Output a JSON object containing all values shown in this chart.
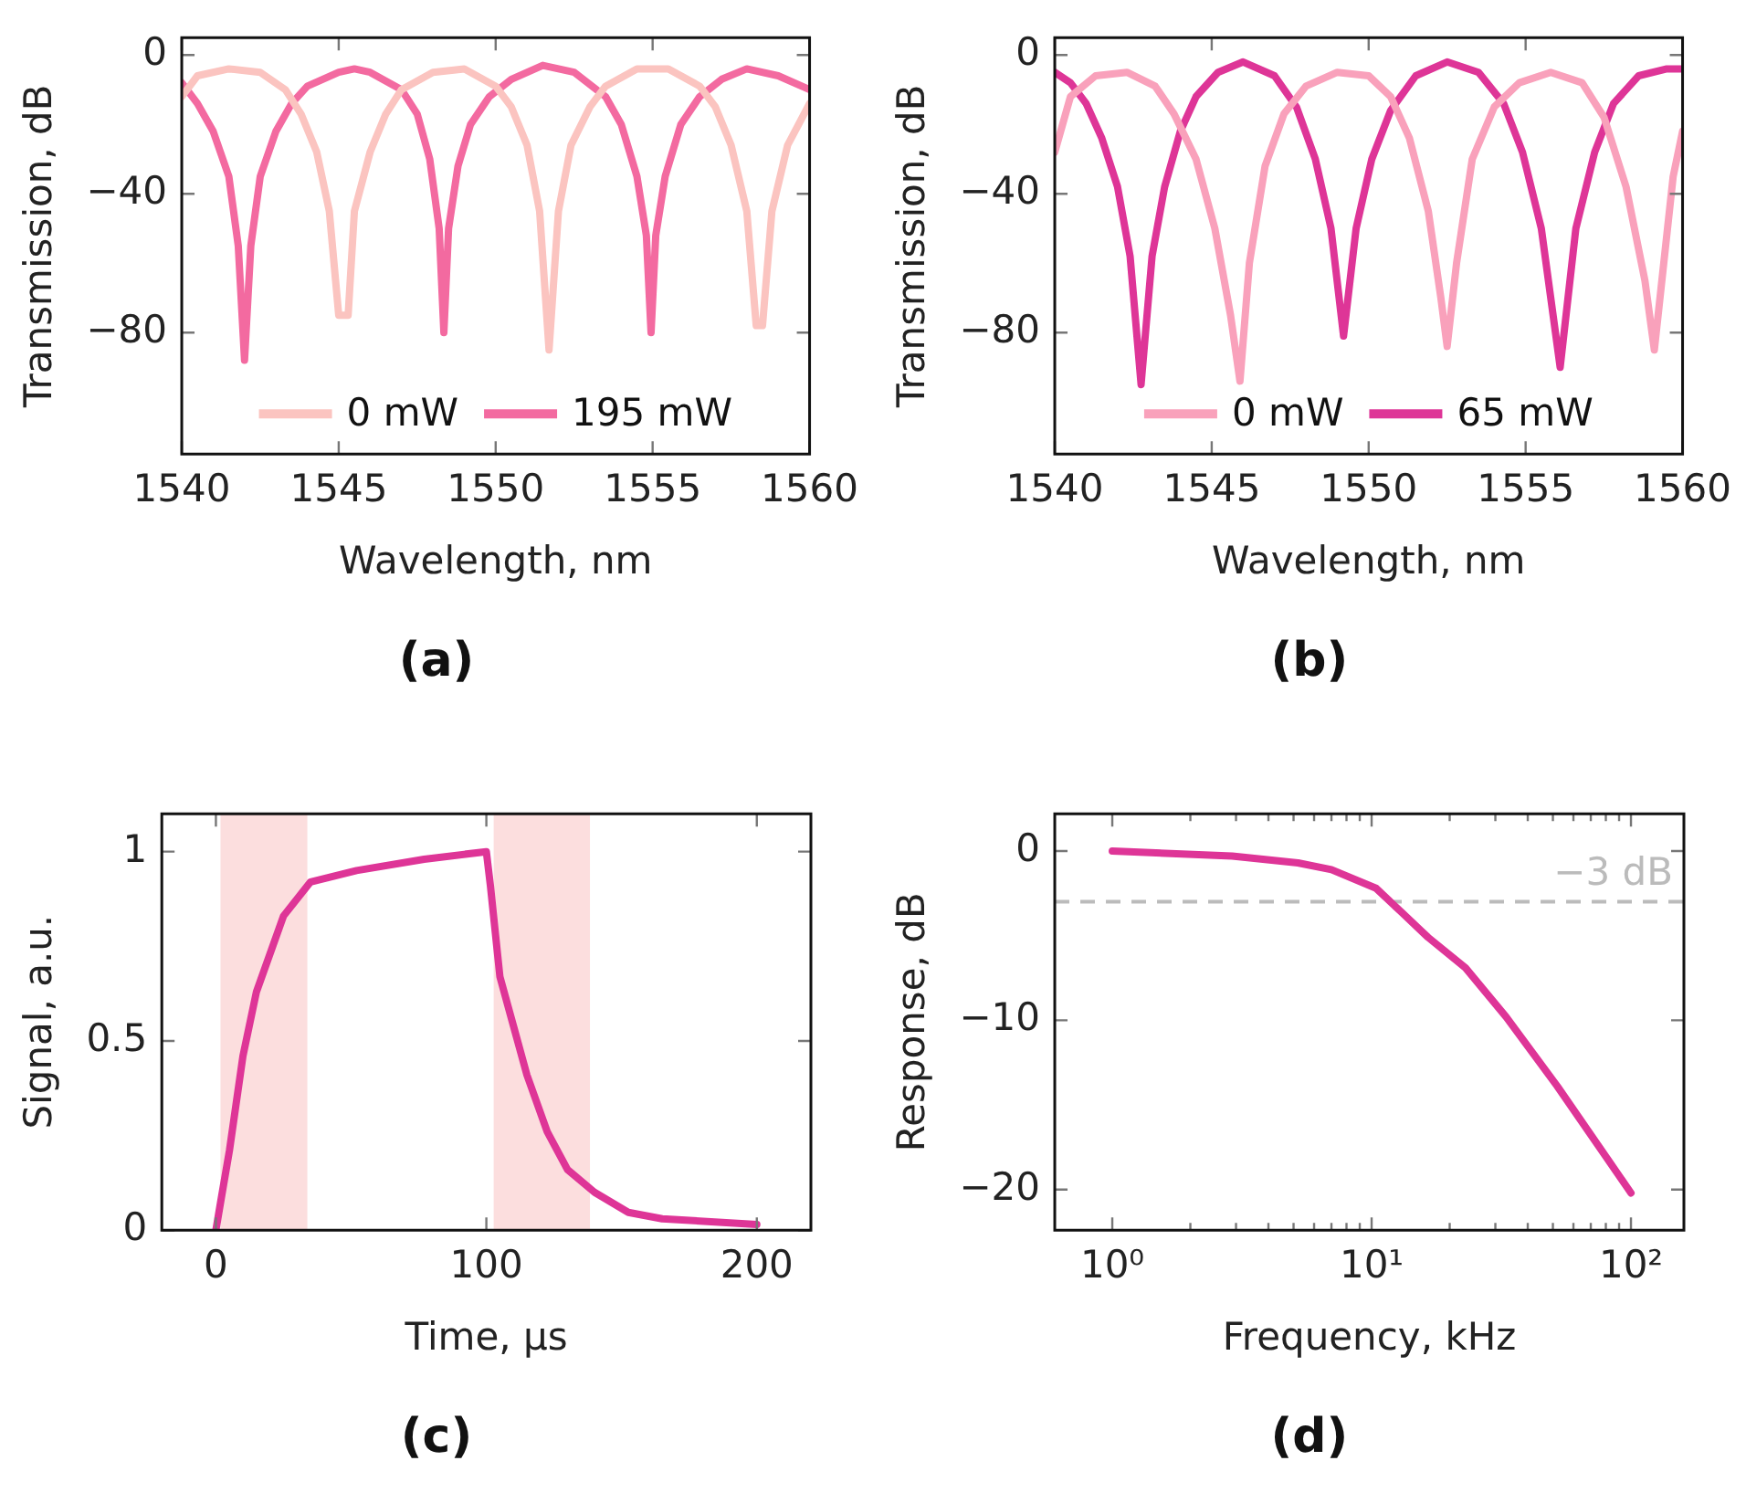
{
  "chart_data": [
    {
      "type": "line",
      "xlabel": "Wavelength, nm",
      "ylabel": "Transmission, dB",
      "annotations": [
        "(a)"
      ],
      "legend": "bottom",
      "marker": "none",
      "grid": false,
      "xlim": [
        1540,
        1560
      ],
      "xticks": [
        1540,
        1545,
        1550,
        1555,
        1560
      ],
      "ylim": [
        -115,
        5
      ],
      "yticks": [
        0,
        {
          "value": -40,
          "label": "−40"
        },
        {
          "value": -80,
          "label": "−80"
        }
      ],
      "series": [
        {
          "name": "0 mW",
          "color": "#fbc4c0",
          "x": [
            1540,
            1540.5,
            1541.5,
            1542.5,
            1543.3,
            1543.8,
            1544.3,
            1544.7,
            1545.0,
            1545.3,
            1545.5,
            1546,
            1546.5,
            1547,
            1548,
            1549,
            1550,
            1550.5,
            1551,
            1551.4,
            1551.7,
            1552,
            1552.4,
            1553,
            1553.5,
            1554.5,
            1555.5,
            1556.5,
            1557,
            1557.5,
            1558,
            1558.3,
            1558.5,
            1558.8,
            1559.3,
            1560
          ],
          "values": [
            -12,
            -6,
            -4,
            -5,
            -10,
            -17,
            -28,
            -45,
            -75,
            -75,
            -45,
            -28,
            -17,
            -10,
            -5,
            -4,
            -9,
            -15,
            -26,
            -45,
            -85,
            -45,
            -26,
            -15,
            -9,
            -4,
            -4,
            -9,
            -15,
            -26,
            -45,
            -78,
            -78,
            -45,
            -26,
            -14
          ]
        },
        {
          "name": "195 mW",
          "color": "#f36aa0",
          "x": [
            1540,
            1540.5,
            1541,
            1541.5,
            1541.8,
            1542.0,
            1542.2,
            1542.5,
            1543,
            1543.5,
            1544,
            1545,
            1545.5,
            1546,
            1547,
            1547.5,
            1547.9,
            1548.2,
            1548.35,
            1548.5,
            1548.8,
            1549.2,
            1549.8,
            1550.5,
            1551.5,
            1552.5,
            1553.5,
            1554,
            1554.5,
            1554.8,
            1554.95,
            1555.1,
            1555.4,
            1555.9,
            1556.5,
            1557.2,
            1558,
            1559,
            1560
          ],
          "values": [
            -8,
            -14,
            -22,
            -35,
            -55,
            -88,
            -55,
            -35,
            -22,
            -14,
            -9,
            -5,
            -4,
            -5,
            -10,
            -17,
            -30,
            -50,
            -80,
            -50,
            -32,
            -20,
            -12,
            -7,
            -3,
            -5,
            -12,
            -20,
            -35,
            -52,
            -80,
            -52,
            -35,
            -20,
            -12,
            -7,
            -4,
            -6,
            -10
          ]
        }
      ]
    },
    {
      "type": "line",
      "xlabel": "Wavelength, nm",
      "ylabel": "Transmission, dB",
      "annotations": [
        "(b)"
      ],
      "legend": "bottom",
      "marker": "none",
      "grid": false,
      "xlim": [
        1540,
        1560
      ],
      "xticks": [
        1540,
        1545,
        1550,
        1555,
        1560
      ],
      "ylim": [
        -115,
        5
      ],
      "yticks": [
        0,
        {
          "value": -40,
          "label": "−40"
        },
        {
          "value": -80,
          "label": "−80"
        }
      ],
      "series": [
        {
          "name": "0 mW",
          "color": "#f9a1bb",
          "x": [
            1540,
            1540.5,
            1541.3,
            1542.3,
            1543.2,
            1543.8,
            1544.5,
            1545.1,
            1545.6,
            1545.9,
            1546.2,
            1546.7,
            1547.3,
            1548,
            1549,
            1550,
            1550.7,
            1551.3,
            1551.9,
            1552.3,
            1552.5,
            1552.8,
            1553.3,
            1554,
            1554.8,
            1555.8,
            1556.8,
            1557.5,
            1558.2,
            1558.8,
            1559.1,
            1559.4,
            1559.7,
            1560
          ],
          "values": [
            -28,
            -12,
            -6,
            -5,
            -9,
            -17,
            -30,
            -50,
            -75,
            -94,
            -60,
            -32,
            -17,
            -9,
            -5,
            -6,
            -12,
            -24,
            -45,
            -70,
            -84,
            -60,
            -30,
            -15,
            -8,
            -5,
            -8,
            -18,
            -38,
            -65,
            -85,
            -60,
            -35,
            -22
          ]
        },
        {
          "name": "65 mW",
          "color": "#de3597",
          "x": [
            1540,
            1540.5,
            1541,
            1541.5,
            1542,
            1542.4,
            1542.75,
            1543.1,
            1543.5,
            1544,
            1544.5,
            1545.2,
            1546,
            1547,
            1547.7,
            1548.3,
            1548.8,
            1549.2,
            1549.6,
            1550.1,
            1550.7,
            1551.5,
            1552.5,
            1553.5,
            1554.3,
            1554.9,
            1555.5,
            1556.1,
            1556.6,
            1557.2,
            1557.8,
            1558.6,
            1559.5,
            1560
          ],
          "values": [
            -5,
            -8,
            -14,
            -24,
            -38,
            -58,
            -95,
            -58,
            -38,
            -22,
            -12,
            -5,
            -2,
            -6,
            -15,
            -30,
            -50,
            -81,
            -50,
            -30,
            -16,
            -6,
            -2,
            -5,
            -14,
            -28,
            -50,
            -90,
            -50,
            -28,
            -14,
            -6,
            -4,
            -4
          ]
        }
      ]
    },
    {
      "type": "line",
      "xlabel": "Time, μs",
      "ylabel": "Signal, a.u.",
      "annotations": [
        "(c)"
      ],
      "marker": "none",
      "grid": false,
      "xlim": [
        -20,
        220
      ],
      "xticks": [
        0,
        100,
        200
      ],
      "ylim": [
        0,
        1.1
      ],
      "yticks": [
        0,
        0.5,
        1
      ],
      "bands": [
        {
          "axis": "x",
          "from": 1.7,
          "to": 33.8,
          "color": "#fcdede"
        },
        {
          "axis": "x",
          "from": 102.7,
          "to": 138.3,
          "color": "#fcdede"
        }
      ],
      "series": [
        {
          "color": "#de3597",
          "x": [
            0,
            2,
            5,
            10,
            15,
            25,
            35,
            52,
            77,
            100,
            101.5,
            105,
            110,
            115,
            122.5,
            130,
            140,
            152.5,
            165,
            200
          ],
          "values": [
            0,
            0.085,
            0.21,
            0.46,
            0.63,
            0.83,
            0.92,
            0.95,
            0.98,
            1.0,
            0.91,
            0.67,
            0.54,
            0.41,
            0.26,
            0.16,
            0.1,
            0.047,
            0.03,
            0.015
          ]
        }
      ]
    },
    {
      "type": "line",
      "xlabel": "Frequency, kHz",
      "ylabel": "Response, dB",
      "annotations": [
        "(d)"
      ],
      "marker": "none",
      "grid": false,
      "log": "x",
      "xlim": [
        0.6,
        160
      ],
      "xticks": [
        {
          "value": 1,
          "label": "10⁰"
        },
        {
          "value": 2,
          "label": null
        },
        {
          "value": 3,
          "label": null
        },
        {
          "value": 4,
          "label": null
        },
        {
          "value": 5,
          "label": null
        },
        {
          "value": 6,
          "label": null
        },
        {
          "value": 7,
          "label": null
        },
        {
          "value": 8,
          "label": null
        },
        {
          "value": 9,
          "label": null
        },
        {
          "value": 10,
          "label": "10¹"
        },
        {
          "value": 20,
          "label": null
        },
        {
          "value": 30,
          "label": null
        },
        {
          "value": 40,
          "label": null
        },
        {
          "value": 50,
          "label": null
        },
        {
          "value": 60,
          "label": null
        },
        {
          "value": 70,
          "label": null
        },
        {
          "value": 80,
          "label": null
        },
        {
          "value": 90,
          "label": null
        },
        {
          "value": 100,
          "label": "10²"
        }
      ],
      "ylim": [
        -22.4,
        2.2
      ],
      "yticks": [
        0,
        {
          "value": -10,
          "label": "−10"
        },
        {
          "value": -20,
          "label": "−20"
        }
      ],
      "ref_lines": [
        {
          "axis": "y",
          "value": -3,
          "label": "−3 dB",
          "color": "#bbbbbb",
          "line_style": "dashed"
        }
      ],
      "series": [
        {
          "color": "#de3597",
          "x": [
            1,
            2.9,
            5.2,
            7,
            10.4,
            13,
            16.5,
            23,
            33,
            52,
            100
          ],
          "values": [
            0,
            -0.3,
            -0.7,
            -1.1,
            -2.2,
            -3.6,
            -5.1,
            -6.9,
            -9.8,
            -13.9,
            -20.2
          ]
        }
      ]
    }
  ]
}
